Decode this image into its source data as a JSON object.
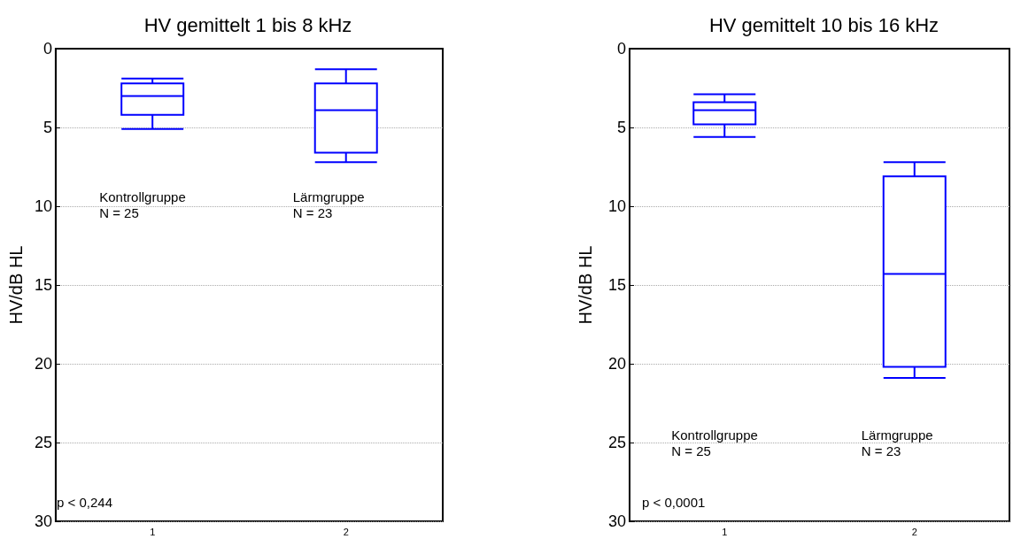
{
  "chart_data": [
    {
      "type": "box",
      "title": "HV gemittelt 1 bis 8 kHz",
      "ylabel": "HV/dB HL",
      "categories": [
        "1",
        "2"
      ],
      "series": [
        {
          "color": "#0000ff",
          "boxes": [
            {
              "low": 1.9,
              "q1": 2.2,
              "median": 3.0,
              "q3": 4.2,
              "high": 5.1
            },
            {
              "low": 1.3,
              "q1": 2.2,
              "median": 3.9,
              "q3": 6.6,
              "high": 7.2
            }
          ]
        }
      ],
      "ylim": [
        30,
        0
      ],
      "yticks": [
        0,
        5,
        10,
        15,
        20,
        25,
        30
      ],
      "grid": "y",
      "annotations": [
        "Kontrollgruppe\nN = 25",
        "Lärmgruppe\nN = 23",
        "p < 0,244"
      ]
    },
    {
      "type": "box",
      "title": "HV gemittelt 10 bis 16 kHz",
      "ylabel": "HV/dB HL",
      "categories": [
        "1",
        "2"
      ],
      "series": [
        {
          "color": "#0000ff",
          "boxes": [
            {
              "low": 2.9,
              "q1": 3.4,
              "median": 3.9,
              "q3": 4.8,
              "high": 5.6
            },
            {
              "low": 7.2,
              "q1": 8.1,
              "median": 14.3,
              "q3": 20.2,
              "high": 20.9
            }
          ]
        }
      ],
      "ylim": [
        30,
        0
      ],
      "yticks": [
        0,
        5,
        10,
        15,
        20,
        25,
        30
      ],
      "grid": "y",
      "annotations": [
        "Kontrollgruppe\nN = 25",
        "Lärmgruppe\nN = 23",
        "p < 0,0001"
      ]
    }
  ]
}
